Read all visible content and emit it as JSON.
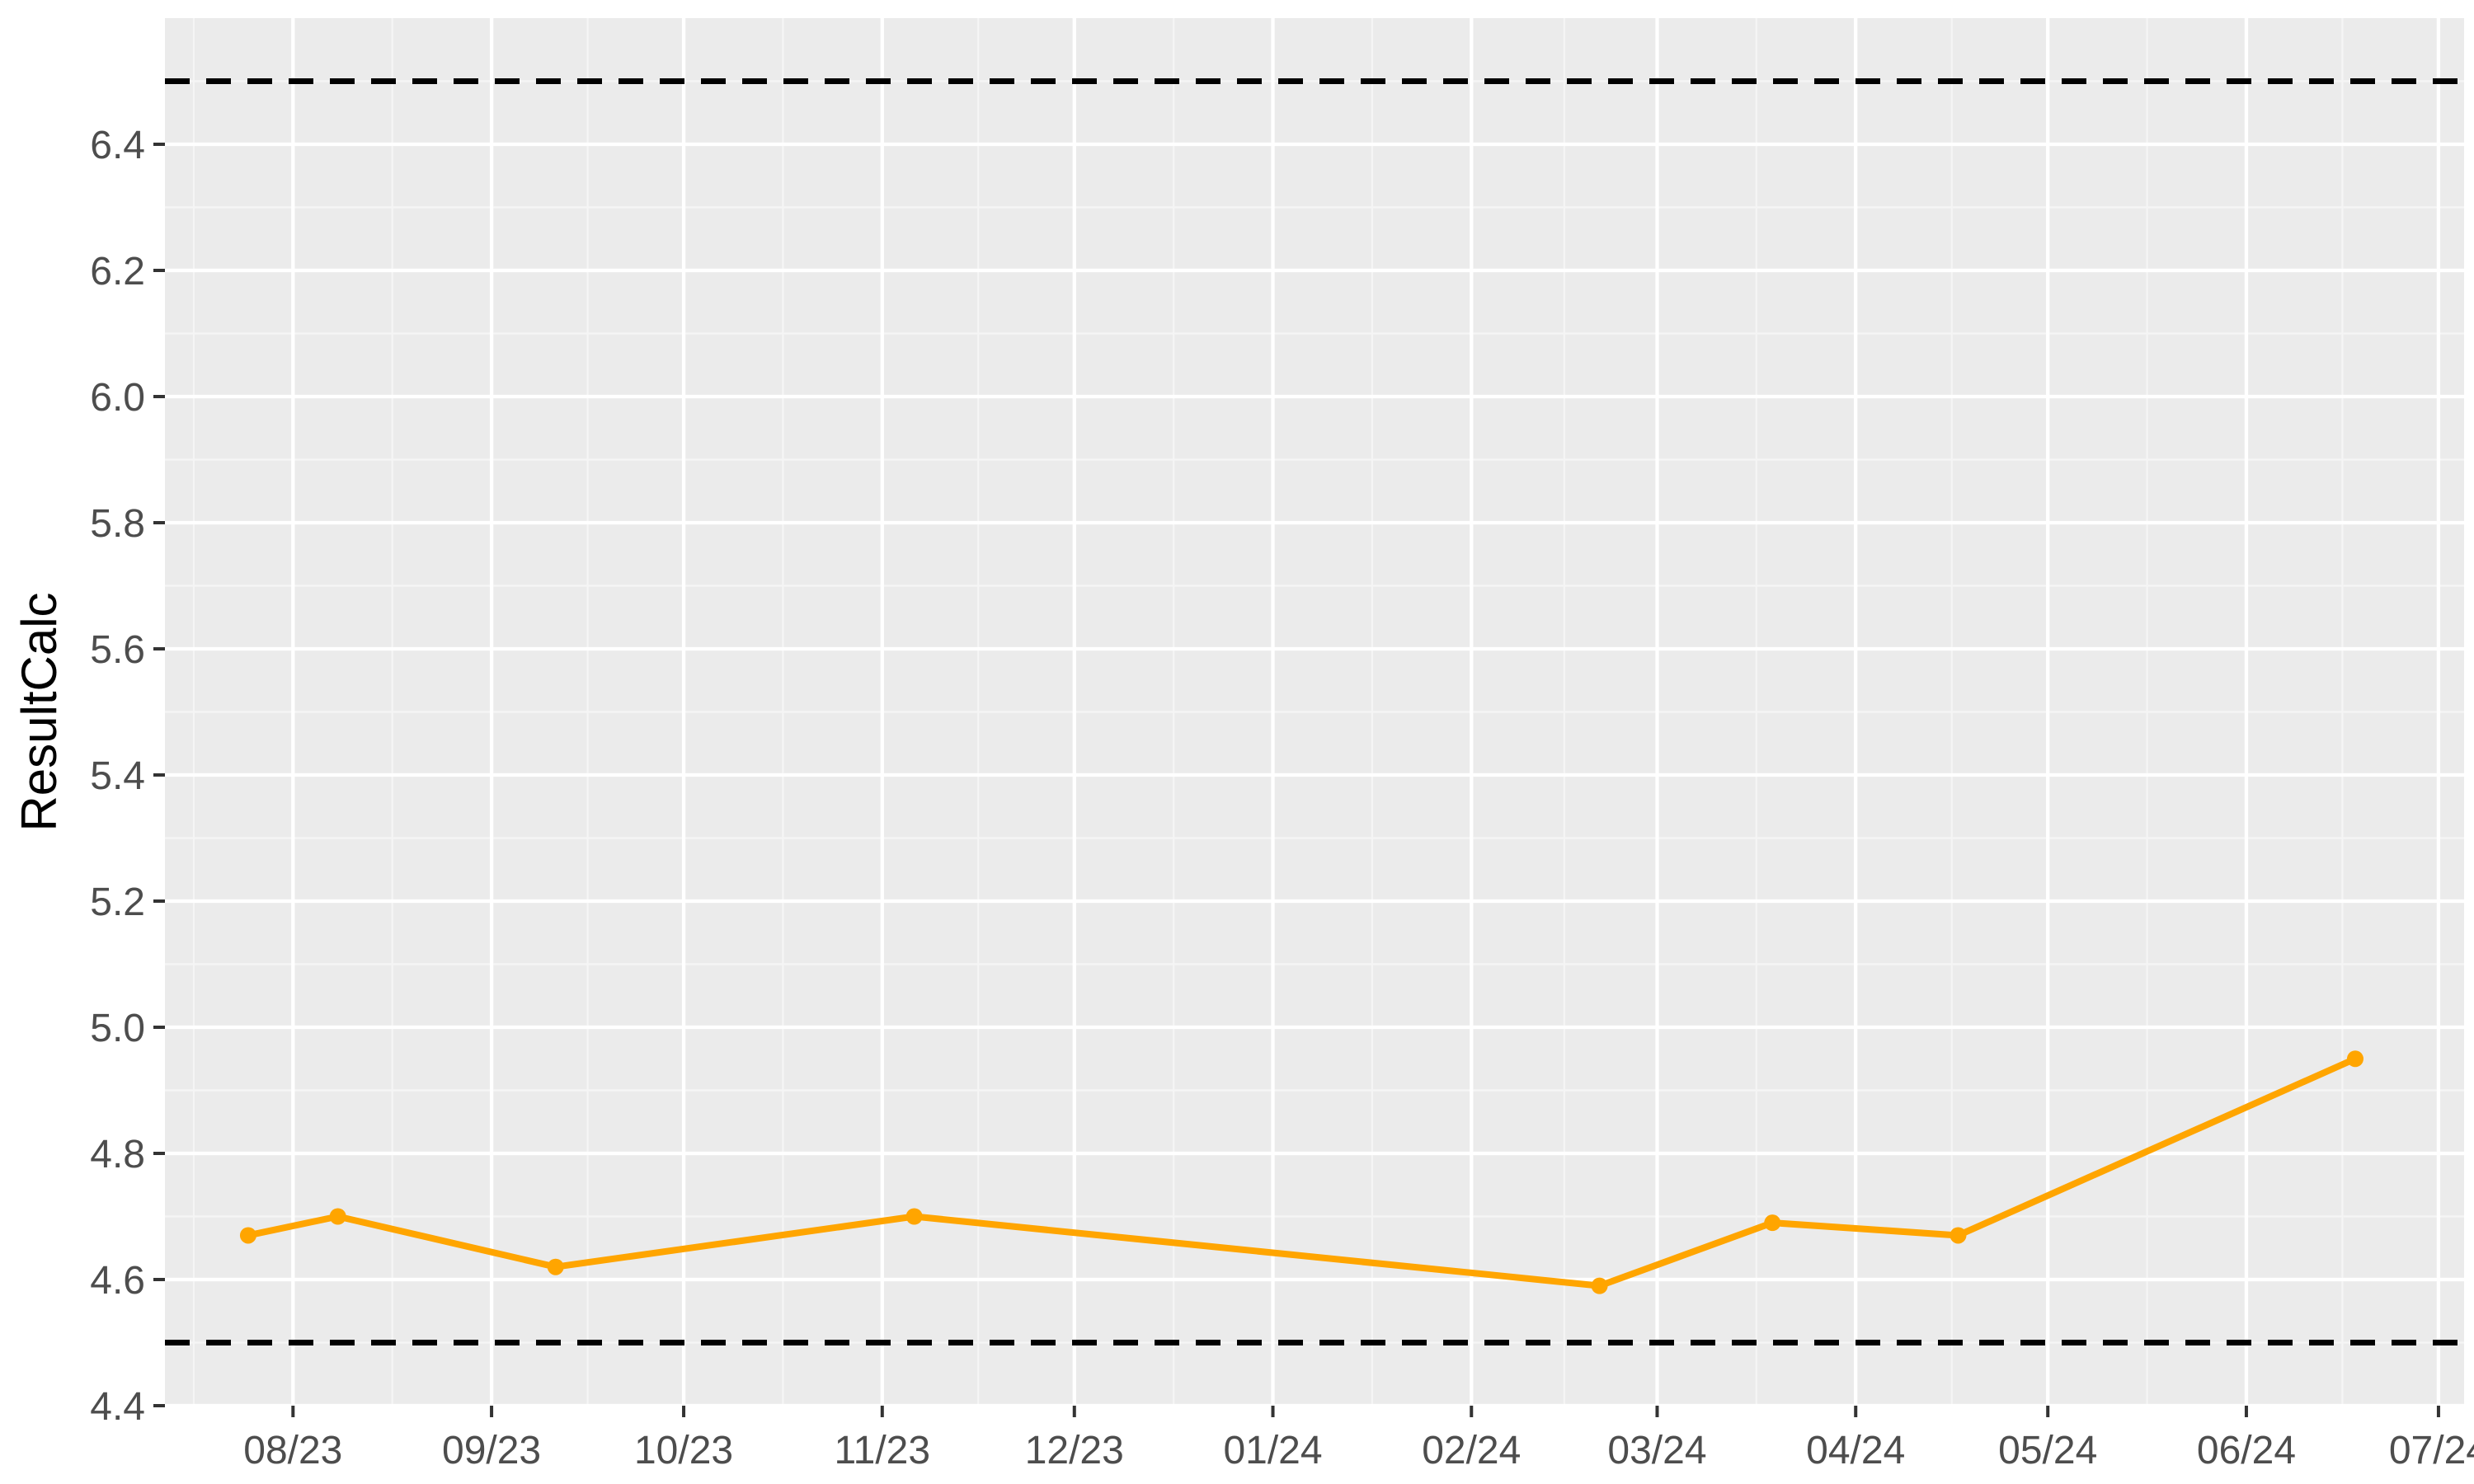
{
  "chart_data": {
    "type": "line",
    "title": "",
    "xlabel": "",
    "ylabel": "ResultCalc",
    "x_type": "date",
    "xlim": [
      "2023-07-12",
      "2024-07-05"
    ],
    "ylim": [
      4.4,
      6.6
    ],
    "y_ticks": [
      4.4,
      4.6,
      4.8,
      5.0,
      5.2,
      5.4,
      5.6,
      5.8,
      6.0,
      6.2,
      6.4
    ],
    "y_tick_labels": [
      "4.4",
      "4.6",
      "4.8",
      "5.0",
      "5.2",
      "5.4",
      "5.6",
      "5.8",
      "6.0",
      "6.2",
      "6.4"
    ],
    "x_ticks": [
      "2023-08-01",
      "2023-09-01",
      "2023-10-01",
      "2023-11-01",
      "2023-12-01",
      "2024-01-01",
      "2024-02-01",
      "2024-03-01",
      "2024-04-01",
      "2024-05-01",
      "2024-06-01",
      "2024-07-01"
    ],
    "x_tick_labels": [
      "08/23",
      "09/23",
      "10/23",
      "11/23",
      "12/23",
      "01/24",
      "02/24",
      "03/24",
      "04/24",
      "05/24",
      "06/24",
      "07/24"
    ],
    "grid": true,
    "series": [
      {
        "color": "#FFA500",
        "points": [
          {
            "x": "2023-07-25",
            "y": 4.67
          },
          {
            "x": "2023-08-08",
            "y": 4.7
          },
          {
            "x": "2023-09-11",
            "y": 4.62
          },
          {
            "x": "2023-11-06",
            "y": 4.7
          },
          {
            "x": "2024-02-21",
            "y": 4.59
          },
          {
            "x": "2024-03-19",
            "y": 4.69
          },
          {
            "x": "2024-04-17",
            "y": 4.67
          },
          {
            "x": "2024-06-18",
            "y": 4.95
          }
        ]
      }
    ],
    "reference_lines": [
      {
        "orientation": "horizontal",
        "y": 6.5,
        "style": "dashed",
        "color": "#000000"
      },
      {
        "orientation": "horizontal",
        "y": 4.5,
        "style": "dashed",
        "color": "#000000"
      }
    ],
    "colors": {
      "panel_background": "#EBEBEB",
      "grid_major": "#FFFFFF",
      "grid_minor": "#F5F5F5"
    }
  }
}
